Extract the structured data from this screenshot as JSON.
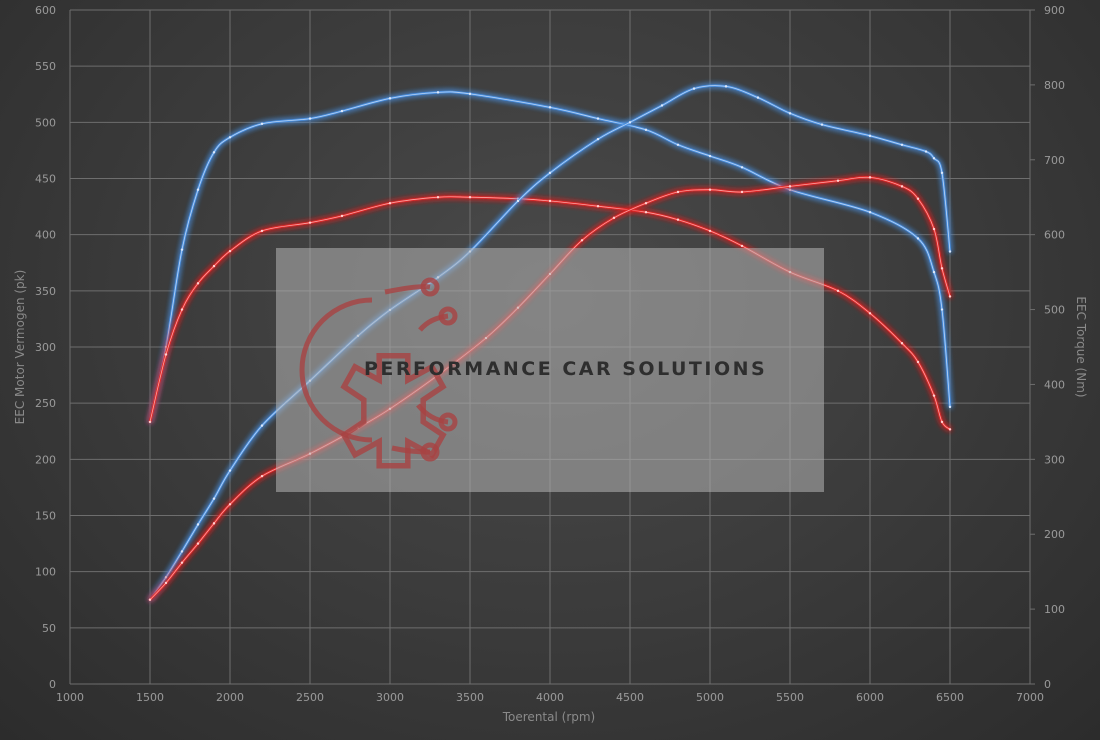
{
  "chart_data": {
    "type": "line",
    "xlabel": "Toerental (rpm)",
    "ylabel_left": "EEC Motor Vermogen (pk)",
    "ylabel_right": "EEC Torque (Nm)",
    "xlim": [
      1000,
      7000
    ],
    "ylim_left": [
      0,
      600
    ],
    "ylim_right": [
      0,
      900
    ],
    "x_ticks": [
      "1000",
      "1500",
      "2000",
      "2500",
      "3000",
      "3500",
      "4000",
      "4500",
      "5000",
      "5500",
      "6000",
      "6500",
      "7000"
    ],
    "y_ticks_left": [
      "0",
      "50",
      "100",
      "150",
      "200",
      "250",
      "300",
      "350",
      "400",
      "450",
      "500",
      "550",
      "600"
    ],
    "y_ticks_right": [
      "0",
      "100",
      "200",
      "300",
      "400",
      "500",
      "600",
      "700",
      "800",
      "900"
    ],
    "grid": true,
    "series": [
      {
        "key": "torque_tuned",
        "axis": "right",
        "color": "#4a8fe0",
        "x": [
          1500,
          1600,
          1700,
          1800,
          1900,
          2000,
          2200,
          2500,
          2700,
          3000,
          3300,
          3500,
          4000,
          4300,
          4600,
          4800,
          5000,
          5200,
          5500,
          6000,
          6300,
          6400,
          6450,
          6500
        ],
        "y": [
          350,
          450,
          580,
          660,
          710,
          730,
          748,
          755,
          765,
          782,
          790,
          788,
          770,
          755,
          740,
          720,
          705,
          690,
          660,
          630,
          595,
          550,
          500,
          370
        ]
      },
      {
        "key": "torque_stock",
        "axis": "right",
        "color": "#e02828",
        "x": [
          1500,
          1600,
          1700,
          1800,
          1900,
          2000,
          2200,
          2500,
          2700,
          3000,
          3300,
          3500,
          3800,
          4000,
          4300,
          4600,
          4800,
          5000,
          5200,
          5500,
          5800,
          6000,
          6200,
          6300,
          6400,
          6450,
          6500
        ],
        "y": [
          350,
          440,
          500,
          535,
          558,
          578,
          605,
          616,
          625,
          642,
          650,
          650,
          648,
          645,
          638,
          630,
          620,
          605,
          585,
          550,
          525,
          495,
          455,
          430,
          385,
          350,
          340
        ]
      },
      {
        "key": "power_tuned",
        "axis": "left",
        "color": "#4a8fe0",
        "x": [
          1500,
          1600,
          1700,
          1800,
          1900,
          2000,
          2200,
          2500,
          2800,
          3000,
          3300,
          3500,
          3800,
          4000,
          4300,
          4500,
          4700,
          4900,
          5100,
          5300,
          5500,
          5700,
          6000,
          6200,
          6350,
          6400,
          6450,
          6500
        ],
        "y": [
          75,
          95,
          118,
          142,
          165,
          190,
          230,
          270,
          310,
          333,
          362,
          385,
          430,
          455,
          485,
          500,
          515,
          530,
          532,
          522,
          508,
          498,
          488,
          480,
          474,
          468,
          455,
          385
        ]
      },
      {
        "key": "power_stock",
        "axis": "left",
        "color": "#e02828",
        "x": [
          1500,
          1600,
          1700,
          1800,
          1900,
          2000,
          2200,
          2500,
          2800,
          3000,
          3300,
          3600,
          3800,
          4000,
          4200,
          4400,
          4600,
          4800,
          5000,
          5200,
          5500,
          5800,
          6000,
          6200,
          6300,
          6400,
          6450,
          6500
        ],
        "y": [
          75,
          90,
          108,
          125,
          143,
          160,
          185,
          205,
          228,
          245,
          275,
          308,
          335,
          365,
          395,
          415,
          428,
          438,
          440,
          438,
          443,
          448,
          451,
          443,
          432,
          405,
          370,
          345
        ]
      }
    ]
  },
  "watermark": {
    "text": "PERFORMANCE CAR SOLUTIONS",
    "logo_icon": "gear-circuit-logo",
    "logo_color": "#a04040"
  }
}
